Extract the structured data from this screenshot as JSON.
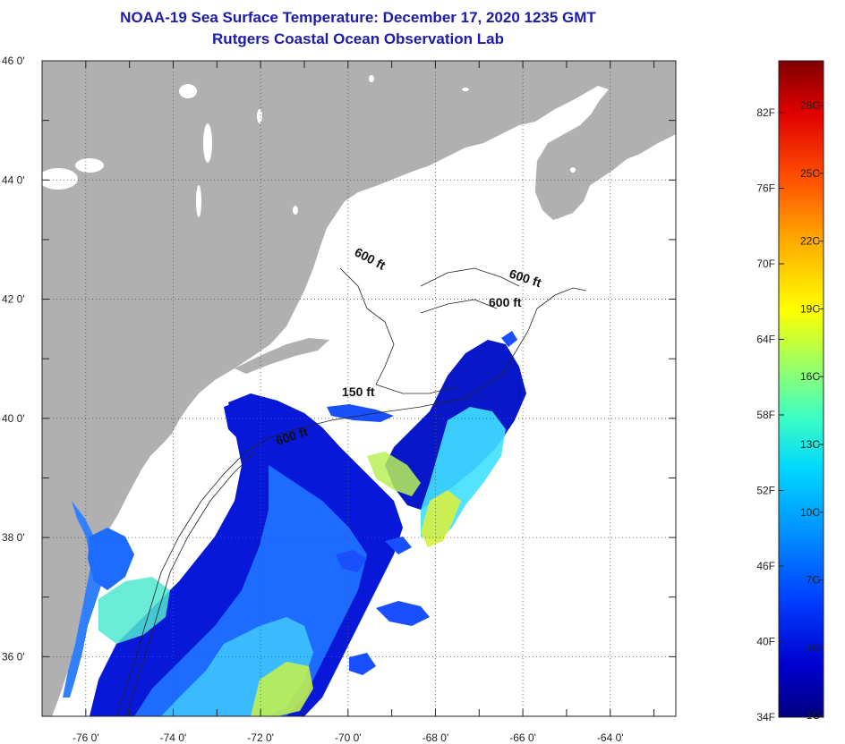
{
  "title": "NOAA-19 Sea Surface Temperature:  December 17, 2020 1235 GMT",
  "subtitle": "Rutgers Coastal Ocean Observation Lab",
  "map": {
    "lon_range": [
      -77,
      -62.5
    ],
    "lat_range": [
      35,
      46
    ],
    "lon_ticks": [
      "-76 0'",
      "-74 0'",
      "-72 0'",
      "-70 0'",
      "-68 0'",
      "-66 0'",
      "-64 0'"
    ],
    "lat_ticks": [
      "46 0'",
      "44 0'",
      "42 0'",
      "40 0'",
      "38 0'",
      "36 0'"
    ],
    "grid": true,
    "grid_style": "dotted",
    "contour_labels": [
      "600 ft",
      "600 ft",
      "600 ft",
      "150 ft",
      "600 ft"
    ]
  },
  "colorbar": {
    "fahrenheit_labels": [
      "82F",
      "76F",
      "70F",
      "64F",
      "58F",
      "52F",
      "46F",
      "40F",
      "34F"
    ],
    "celsius_labels": [
      "28C",
      "25C",
      "22C",
      "19C",
      "16C",
      "13C",
      "10C",
      "7C",
      "4C",
      "1C"
    ],
    "colors": [
      "#000080",
      "#0000d0",
      "#0040ff",
      "#0090ff",
      "#00d8ff",
      "#40ffc0",
      "#a0ff60",
      "#ffff00",
      "#ffb000",
      "#ff5000",
      "#e00000",
      "#800000"
    ]
  },
  "colors": {
    "land": "#b0b0b0",
    "cloud": "#ffffff",
    "title": "#1c1ca8"
  }
}
